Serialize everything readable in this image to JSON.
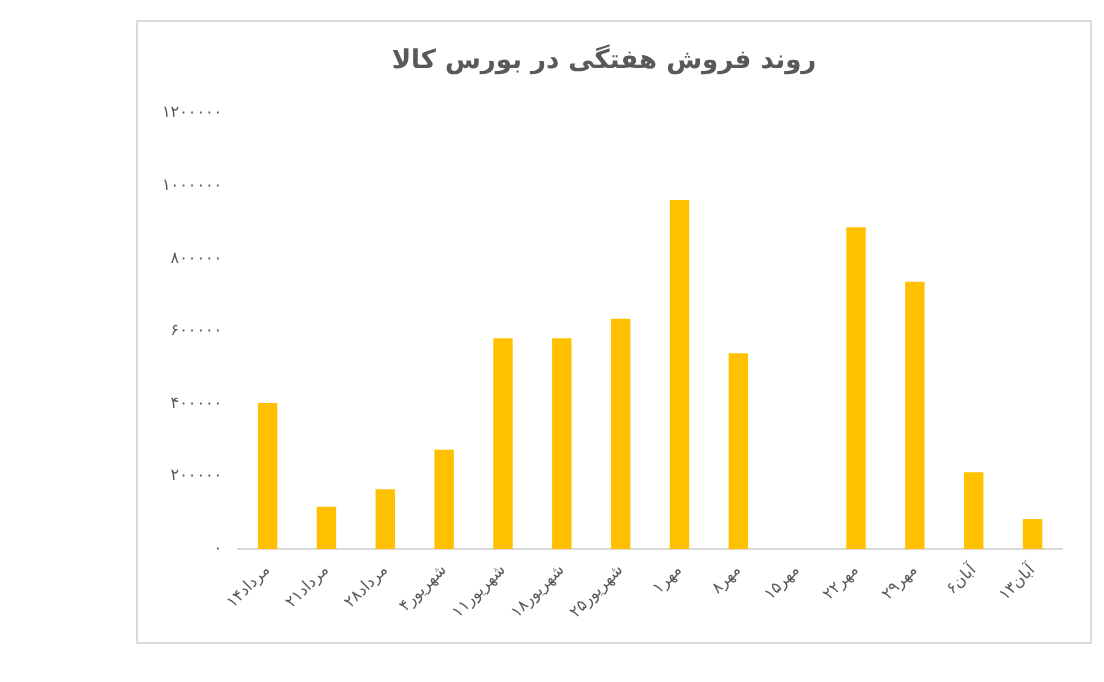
{
  "chart_data": {
    "type": "bar",
    "title": "روند فروش هفتگی در بورس کالا",
    "categories": [
      "۱۴مرداد",
      "۲۱مرداد",
      "۲۸مرداد",
      "۴شهریور",
      "۱۱شهریور",
      "۱۸شهریور",
      "۲۵شهریور",
      "۱مهر",
      "۸مهر",
      "۱۵مهر",
      "۲۲مهر",
      "۲۹مهر",
      "۶آبان",
      "۱۳آبان"
    ],
    "values": [
      402000,
      116000,
      164000,
      273000,
      580000,
      580000,
      634000,
      961000,
      539000,
      0,
      886000,
      736000,
      211000,
      82000
    ],
    "color": "#ffc000",
    "ylim": [
      0,
      1200000
    ],
    "yticks": [
      {
        "value": 0,
        "label": "۰"
      },
      {
        "value": 200000,
        "label": "۲۰۰۰۰۰"
      },
      {
        "value": 400000,
        "label": "۴۰۰۰۰۰"
      },
      {
        "value": 600000,
        "label": "۶۰۰۰۰۰"
      },
      {
        "value": 800000,
        "label": "۸۰۰۰۰۰"
      },
      {
        "value": 1000000,
        "label": "۱۰۰۰۰۰۰"
      },
      {
        "value": 1200000,
        "label": "۱۲۰۰۰۰۰"
      }
    ],
    "grid": false,
    "legend": false
  }
}
